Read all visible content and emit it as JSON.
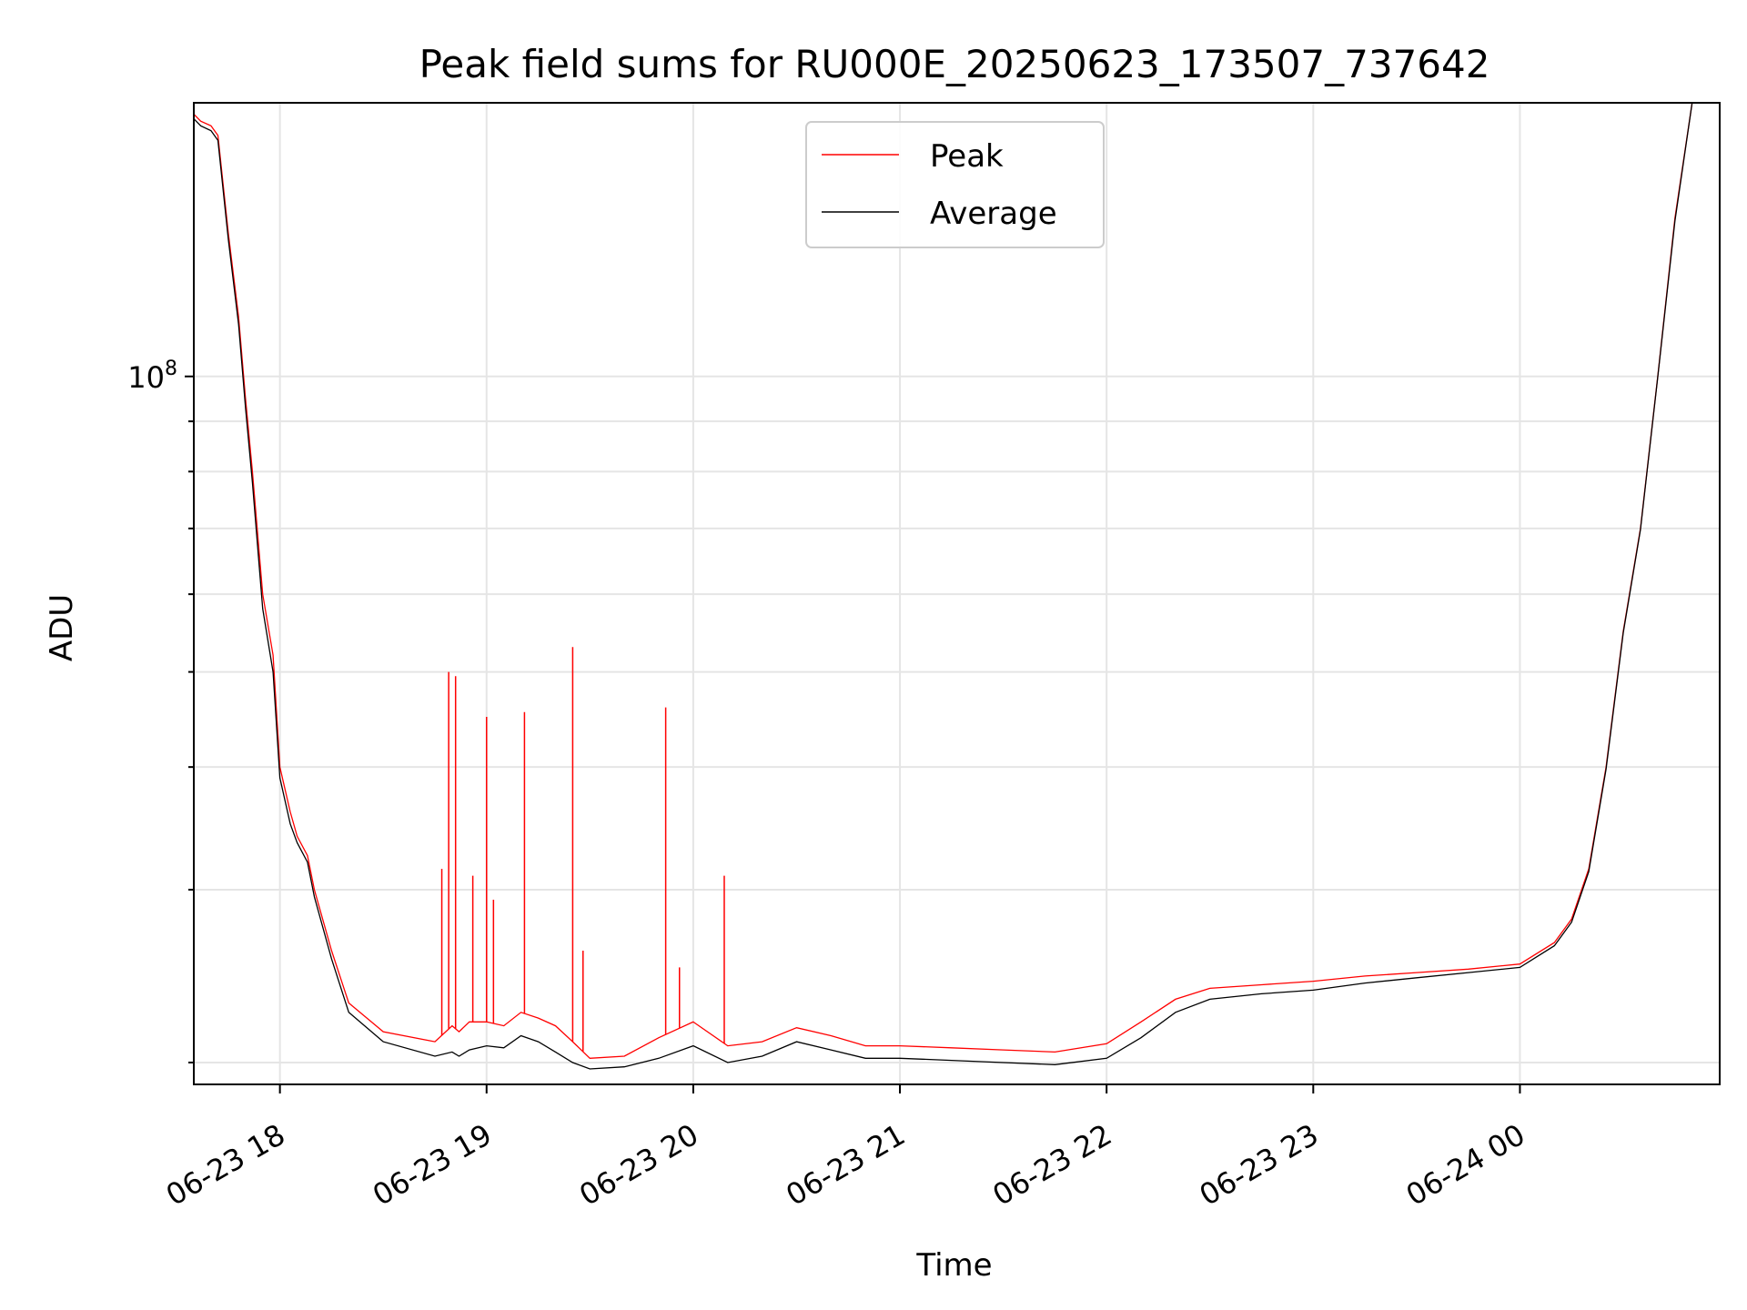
{
  "chart_data": {
    "type": "line",
    "title": "Peak field sums for RU000E_20250623_173507_737642",
    "xlabel": "Time",
    "ylabel": "ADU",
    "yscale": "log",
    "grid": true,
    "legend_placement": "upper center",
    "x_ticks": [
      "06-23 18",
      "06-23 19",
      "06-23 20",
      "06-23 21",
      "06-23 22",
      "06-23 23",
      "06-24 00"
    ],
    "y_ticks": [
      {
        "label_base": "10",
        "label_exp": "8",
        "value": 100000000
      }
    ],
    "xlim": [
      "2025-06-23 17:35",
      "2025-06-24 00:58"
    ],
    "ylim": [
      19000000,
      190000000
    ],
    "series": [
      {
        "name": "Peak",
        "color": "#ff0000",
        "x": [
          "2025-06-23 17:35",
          "2025-06-23 17:37",
          "2025-06-23 17:40",
          "2025-06-23 17:42",
          "2025-06-23 17:45",
          "2025-06-23 17:48",
          "2025-06-23 17:50",
          "2025-06-23 17:52",
          "2025-06-23 17:55",
          "2025-06-23 17:58",
          "2025-06-23 18:00",
          "2025-06-23 18:03",
          "2025-06-23 18:05",
          "2025-06-23 18:08",
          "2025-06-23 18:10",
          "2025-06-23 18:15",
          "2025-06-23 18:20",
          "2025-06-23 18:30",
          "2025-06-23 18:45",
          "2025-06-23 18:50",
          "2025-06-23 18:52",
          "2025-06-23 18:55",
          "2025-06-23 19:00",
          "2025-06-23 19:05",
          "2025-06-23 19:10",
          "2025-06-23 19:15",
          "2025-06-23 19:20",
          "2025-06-23 19:25",
          "2025-06-23 19:30",
          "2025-06-23 19:40",
          "2025-06-23 19:50",
          "2025-06-23 20:00",
          "2025-06-23 20:10",
          "2025-06-23 20:20",
          "2025-06-23 20:30",
          "2025-06-23 20:40",
          "2025-06-23 20:50",
          "2025-06-23 21:00",
          "2025-06-23 21:15",
          "2025-06-23 21:30",
          "2025-06-23 21:45",
          "2025-06-23 22:00",
          "2025-06-23 22:10",
          "2025-06-23 22:20",
          "2025-06-23 22:30",
          "2025-06-23 22:45",
          "2025-06-23 23:00",
          "2025-06-23 23:15",
          "2025-06-23 23:30",
          "2025-06-23 23:45",
          "2025-06-24 00:00",
          "2025-06-24 00:10",
          "2025-06-24 00:15",
          "2025-06-24 00:20",
          "2025-06-24 00:25",
          "2025-06-24 00:30",
          "2025-06-24 00:35",
          "2025-06-24 00:40",
          "2025-06-24 00:45",
          "2025-06-24 00:50"
        ],
        "values": [
          185000000,
          182000000,
          180000000,
          176000000,
          140000000,
          115000000,
          95000000,
          80000000,
          60000000,
          52000000,
          40000000,
          36000000,
          34000000,
          32500000,
          30000000,
          26000000,
          23000000,
          21500000,
          21000000,
          21800000,
          21500000,
          22000000,
          22000000,
          21800000,
          22500000,
          22200000,
          21800000,
          21000000,
          20200000,
          20300000,
          21200000,
          22000000,
          20800000,
          21000000,
          21700000,
          21300000,
          20800000,
          20800000,
          20700000,
          20600000,
          20500000,
          20900000,
          22000000,
          23200000,
          23800000,
          24000000,
          24200000,
          24500000,
          24700000,
          24900000,
          25200000,
          26500000,
          28000000,
          31500000,
          40000000,
          55000000,
          70000000,
          100000000,
          145000000,
          195000000
        ],
        "spikes": [
          {
            "x": "2025-06-23 18:47",
            "value": 31500000
          },
          {
            "x": "2025-06-23 18:49",
            "value": 50000000
          },
          {
            "x": "2025-06-23 18:51",
            "value": 49500000
          },
          {
            "x": "2025-06-23 18:56",
            "value": 31000000
          },
          {
            "x": "2025-06-23 19:00",
            "value": 45000000
          },
          {
            "x": "2025-06-23 19:02",
            "value": 29300000
          },
          {
            "x": "2025-06-23 19:11",
            "value": 45500000
          },
          {
            "x": "2025-06-23 19:25",
            "value": 53000000
          },
          {
            "x": "2025-06-23 19:28",
            "value": 26000000
          },
          {
            "x": "2025-06-23 19:52",
            "value": 46000000
          },
          {
            "x": "2025-06-23 19:56",
            "value": 25000000
          },
          {
            "x": "2025-06-23 20:09",
            "value": 31000000
          }
        ]
      },
      {
        "name": "Average",
        "color": "#000000",
        "x": [
          "2025-06-23 17:35",
          "2025-06-23 17:37",
          "2025-06-23 17:40",
          "2025-06-23 17:42",
          "2025-06-23 17:45",
          "2025-06-23 17:48",
          "2025-06-23 17:50",
          "2025-06-23 17:52",
          "2025-06-23 17:55",
          "2025-06-23 17:58",
          "2025-06-23 18:00",
          "2025-06-23 18:03",
          "2025-06-23 18:05",
          "2025-06-23 18:08",
          "2025-06-23 18:10",
          "2025-06-23 18:15",
          "2025-06-23 18:20",
          "2025-06-23 18:30",
          "2025-06-23 18:45",
          "2025-06-23 18:50",
          "2025-06-23 18:52",
          "2025-06-23 18:55",
          "2025-06-23 19:00",
          "2025-06-23 19:05",
          "2025-06-23 19:10",
          "2025-06-23 19:15",
          "2025-06-23 19:20",
          "2025-06-23 19:25",
          "2025-06-23 19:30",
          "2025-06-23 19:40",
          "2025-06-23 19:50",
          "2025-06-23 20:00",
          "2025-06-23 20:10",
          "2025-06-23 20:20",
          "2025-06-23 20:30",
          "2025-06-23 20:40",
          "2025-06-23 20:50",
          "2025-06-23 21:00",
          "2025-06-23 21:15",
          "2025-06-23 21:30",
          "2025-06-23 21:45",
          "2025-06-23 22:00",
          "2025-06-23 22:10",
          "2025-06-23 22:20",
          "2025-06-23 22:30",
          "2025-06-23 22:45",
          "2025-06-23 23:00",
          "2025-06-23 23:15",
          "2025-06-23 23:30",
          "2025-06-23 23:45",
          "2025-06-24 00:00",
          "2025-06-24 00:10",
          "2025-06-24 00:15",
          "2025-06-24 00:20",
          "2025-06-24 00:25",
          "2025-06-24 00:30",
          "2025-06-24 00:35",
          "2025-06-24 00:40",
          "2025-06-24 00:45",
          "2025-06-24 00:50"
        ],
        "values": [
          183000000,
          180000000,
          178000000,
          174000000,
          138000000,
          113000000,
          93000000,
          78000000,
          58000000,
          50000000,
          39000000,
          35000000,
          33500000,
          32000000,
          29500000,
          25500000,
          22500000,
          21000000,
          20300000,
          20500000,
          20300000,
          20600000,
          20800000,
          20700000,
          21300000,
          21000000,
          20500000,
          20000000,
          19700000,
          19800000,
          20200000,
          20800000,
          20000000,
          20300000,
          21000000,
          20600000,
          20200000,
          20200000,
          20100000,
          20000000,
          19900000,
          20200000,
          21200000,
          22500000,
          23200000,
          23500000,
          23700000,
          24100000,
          24400000,
          24700000,
          25000000,
          26300000,
          27800000,
          31300000,
          39800000,
          54800000,
          69800000,
          99800000,
          144000000,
          195000000
        ]
      }
    ]
  }
}
